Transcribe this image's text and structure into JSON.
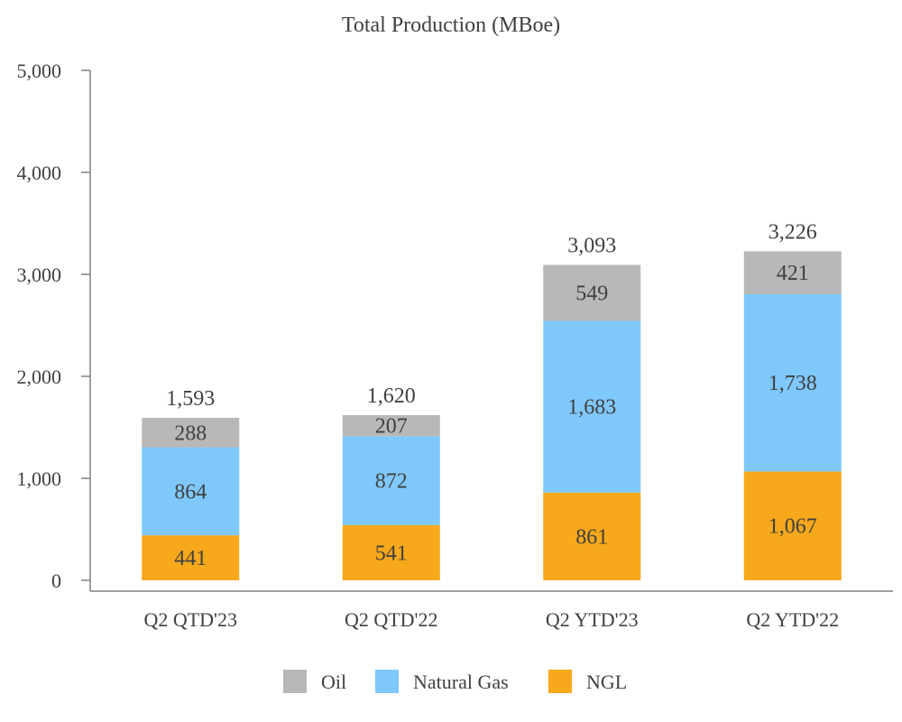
{
  "chart_data": {
    "type": "bar",
    "stacked": true,
    "title": "Total Production (MBoe)",
    "xlabel": "",
    "ylabel": "",
    "ylim": [
      0,
      5000
    ],
    "yticks": [
      0,
      1000,
      2000,
      3000,
      4000,
      5000
    ],
    "ytick_labels": [
      "0",
      "1,000",
      "2,000",
      "3,000",
      "4,000",
      "5,000"
    ],
    "categories": [
      "Q2 QTD'23",
      "Q2 QTD'22",
      "Q2 YTD'23",
      "Q2 YTD'22"
    ],
    "series": [
      {
        "name": "NGL",
        "color": "#F7A81B",
        "values": [
          441,
          541,
          861,
          1067
        ],
        "labels": [
          "441",
          "541",
          "861",
          "1,067"
        ]
      },
      {
        "name": "Natural Gas",
        "color": "#7FC8FC",
        "values": [
          864,
          872,
          1683,
          1738
        ],
        "labels": [
          "864",
          "872",
          "1,683",
          "1,738"
        ]
      },
      {
        "name": "Oil",
        "color": "#B8B8B8",
        "values": [
          288,
          207,
          549,
          421
        ],
        "labels": [
          "288",
          "207",
          "549",
          "421"
        ]
      }
    ],
    "totals": [
      1593,
      1620,
      3093,
      3226
    ],
    "total_labels": [
      "1,593",
      "1,620",
      "3,093",
      "3,226"
    ],
    "legend": [
      "Oil",
      "Natural Gas",
      "NGL"
    ],
    "legend_position": "bottom",
    "grid": false
  }
}
